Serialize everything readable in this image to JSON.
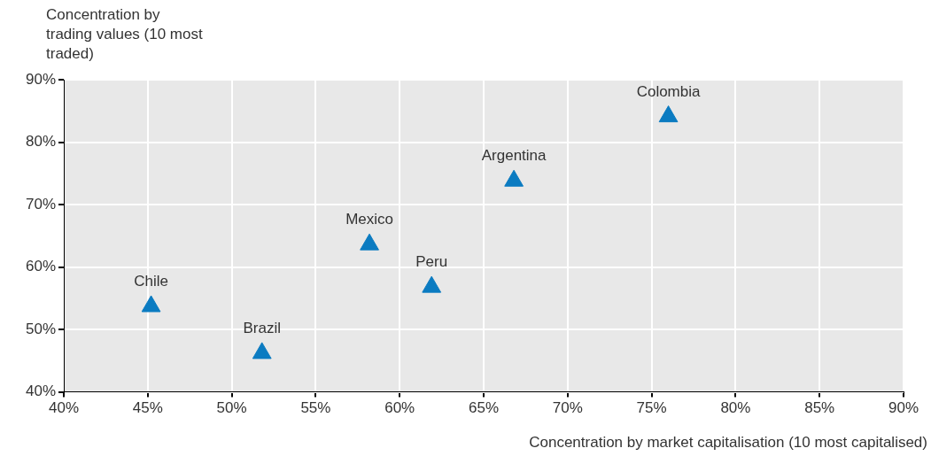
{
  "chart_data": {
    "type": "scatter",
    "xlabel": "Concentration by market capitalisation (10 most capitalised)",
    "ylabel": "Concentration by trading values (10 most traded)",
    "series": [
      {
        "name": "Chile",
        "color": "#0b7bc1",
        "x": [
          45.2
        ],
        "values": [
          53.7
        ]
      },
      {
        "name": "Brazil",
        "color": "#0b7bc1",
        "x": [
          51.8
        ],
        "values": [
          46.2
        ]
      },
      {
        "name": "Mexico",
        "color": "#0b7bc1",
        "x": [
          58.2
        ],
        "values": [
          63.6
        ]
      },
      {
        "name": "Peru",
        "color": "#0b7bc1",
        "x": [
          61.9
        ],
        "values": [
          56.8
        ]
      },
      {
        "name": "Argentina",
        "color": "#0b7bc1",
        "x": [
          66.8
        ],
        "values": [
          73.8
        ]
      },
      {
        "name": "Colombia",
        "color": "#0b7bc1",
        "x": [
          76.0
        ],
        "values": [
          84.1
        ]
      }
    ],
    "xlim": [
      40,
      90
    ],
    "xticks": [
      {
        "value": 40,
        "label": "40%"
      },
      {
        "value": 45,
        "label": "45%"
      },
      {
        "value": 50,
        "label": "50%"
      },
      {
        "value": 55,
        "label": "55%"
      },
      {
        "value": 60,
        "label": "60%"
      },
      {
        "value": 65,
        "label": "65%"
      },
      {
        "value": 70,
        "label": "70%"
      },
      {
        "value": 75,
        "label": "75%"
      },
      {
        "value": 80,
        "label": "80%"
      },
      {
        "value": 85,
        "label": "85%"
      },
      {
        "value": 90,
        "label": "90%"
      }
    ],
    "ylim": [
      40,
      90
    ],
    "yticks": [
      {
        "value": 40,
        "label": "40%"
      },
      {
        "value": 50,
        "label": "50%"
      },
      {
        "value": 60,
        "label": "60%"
      },
      {
        "value": 70,
        "label": "70%"
      },
      {
        "value": 80,
        "label": "80%"
      },
      {
        "value": 90,
        "label": "90%"
      }
    ],
    "grid": true,
    "legend": false,
    "marker": "triangle"
  }
}
